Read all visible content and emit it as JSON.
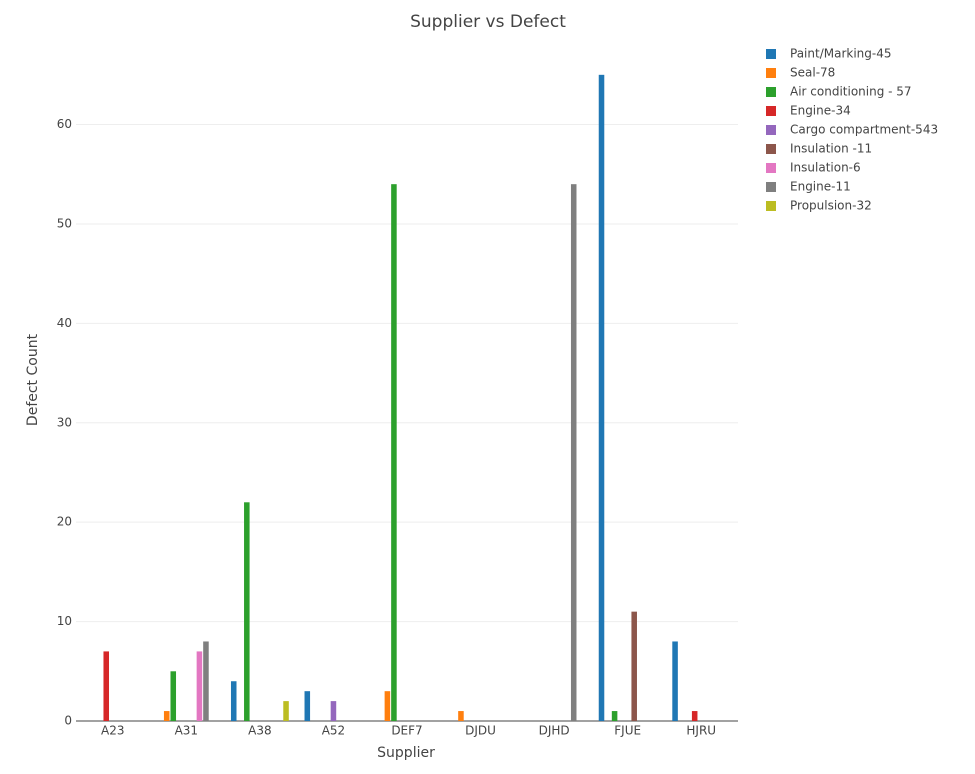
{
  "chart_data": {
    "type": "bar",
    "title": "Supplier vs Defect",
    "x_label": "Supplier",
    "y_label": "Defect Count",
    "categories": [
      "A23",
      "A31",
      "A38",
      "A52",
      "DEF7",
      "DJDU",
      "DJHD",
      "FJUE",
      "HJRU"
    ],
    "series": [
      {
        "name": "Paint/Marking-45",
        "color": "#1f77b4",
        "values": [
          null,
          null,
          4,
          3,
          null,
          null,
          null,
          65,
          8
        ]
      },
      {
        "name": "Seal-78",
        "color": "#ff7f0e",
        "values": [
          null,
          1,
          null,
          null,
          3,
          1,
          null,
          null,
          null
        ]
      },
      {
        "name": "Air conditioning - 57",
        "color": "#2ca02c",
        "values": [
          null,
          5,
          22,
          null,
          54,
          null,
          null,
          1,
          null
        ]
      },
      {
        "name": "Engine-34",
        "color": "#d62728",
        "values": [
          7,
          null,
          null,
          null,
          null,
          null,
          null,
          null,
          1
        ]
      },
      {
        "name": "Cargo compartment-543",
        "color": "#9467bd",
        "values": [
          null,
          null,
          null,
          2,
          null,
          null,
          null,
          null,
          null
        ]
      },
      {
        "name": "Insulation -11",
        "color": "#8c564b",
        "values": [
          null,
          null,
          null,
          null,
          null,
          null,
          null,
          11,
          null
        ]
      },
      {
        "name": "Insulation-6",
        "color": "#e377c2",
        "values": [
          null,
          7,
          null,
          null,
          null,
          null,
          null,
          null,
          null
        ]
      },
      {
        "name": "Engine-11",
        "color": "#7f7f7f",
        "values": [
          null,
          8,
          null,
          null,
          null,
          null,
          54,
          null,
          null
        ]
      },
      {
        "name": "Propulsion-32",
        "color": "#bcbd22",
        "values": [
          null,
          null,
          2,
          null,
          null,
          null,
          null,
          null,
          null
        ]
      }
    ],
    "ylim": [
      0,
      68
    ],
    "yticks": [
      0,
      10,
      20,
      30,
      40,
      50,
      60
    ],
    "grid": true
  }
}
